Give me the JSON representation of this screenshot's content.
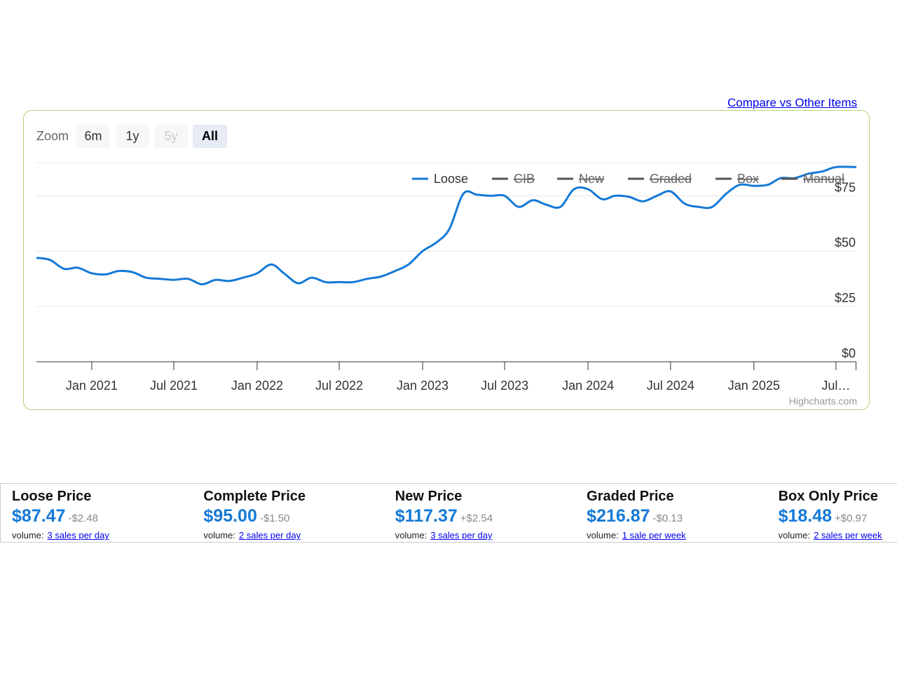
{
  "compare_link": "Compare vs Other Items",
  "chart": {
    "zoom_label": "Zoom",
    "zoom_buttons": [
      {
        "label": "6m",
        "state": "normal"
      },
      {
        "label": "1y",
        "state": "normal"
      },
      {
        "label": "5y",
        "state": "disabled"
      },
      {
        "label": "All",
        "state": "active"
      }
    ],
    "credits": "Highcharts.com"
  },
  "chart_data": {
    "type": "line",
    "title": "",
    "xlabel": "",
    "ylabel": "",
    "x_range": [
      "2020-09-01",
      "2025-08-15"
    ],
    "ylim": [
      0,
      90
    ],
    "y_ticks": [
      0,
      25,
      50,
      75
    ],
    "y_tick_labels": [
      "$0",
      "$25",
      "$50",
      "$75"
    ],
    "x_ticks": [
      "2021-01-01",
      "2021-07-01",
      "2022-01-01",
      "2022-07-01",
      "2023-01-01",
      "2023-07-01",
      "2024-01-01",
      "2024-07-01",
      "2025-01-01",
      "2025-07-01"
    ],
    "x_tick_labels": [
      "Jan 2021",
      "Jul 2021",
      "Jan 2022",
      "Jul 2022",
      "Jan 2023",
      "Jul 2023",
      "Jan 2024",
      "Jul 2024",
      "Jan 2025",
      "Jul…"
    ],
    "grid": true,
    "legend_position": "top-right",
    "series": [
      {
        "name": "Loose",
        "color": "#1479d6",
        "visible": true,
        "x": [
          "2020-09-01",
          "2020-10-01",
          "2020-11-01",
          "2020-12-01",
          "2021-01-01",
          "2021-02-01",
          "2021-03-01",
          "2021-04-01",
          "2021-05-01",
          "2021-06-01",
          "2021-07-01",
          "2021-08-01",
          "2021-09-01",
          "2021-10-01",
          "2021-11-01",
          "2021-12-01",
          "2022-01-01",
          "2022-02-01",
          "2022-03-01",
          "2022-04-01",
          "2022-05-01",
          "2022-06-01",
          "2022-07-01",
          "2022-08-01",
          "2022-09-01",
          "2022-10-01",
          "2022-11-01",
          "2022-12-01",
          "2023-01-01",
          "2023-02-01",
          "2023-03-01",
          "2023-04-01",
          "2023-05-01",
          "2023-06-01",
          "2023-07-01",
          "2023-08-01",
          "2023-09-01",
          "2023-10-01",
          "2023-11-01",
          "2023-12-01",
          "2024-01-01",
          "2024-02-01",
          "2024-03-01",
          "2024-04-01",
          "2024-05-01",
          "2024-06-01",
          "2024-07-01",
          "2024-08-01",
          "2024-09-01",
          "2024-10-01",
          "2024-11-01",
          "2024-12-01",
          "2025-01-01",
          "2025-02-01",
          "2025-03-01",
          "2025-04-01",
          "2025-05-01",
          "2025-06-01",
          "2025-07-01",
          "2025-08-15"
        ],
        "values": [
          47,
          46,
          42,
          42.5,
          40,
          39.5,
          41,
          40.5,
          38,
          37.5,
          37,
          37.5,
          35,
          37,
          36.5,
          38,
          40,
          44,
          40,
          35.5,
          38,
          36,
          36,
          36,
          37.5,
          38.5,
          41,
          44,
          50,
          54,
          60,
          76,
          75.5,
          75,
          75,
          70,
          73,
          71,
          70,
          78,
          78,
          73.5,
          75,
          74.5,
          72.5,
          75,
          77,
          71.5,
          70,
          70,
          76,
          80,
          79.5,
          80,
          83,
          83,
          85,
          86,
          88,
          88
        ]
      },
      {
        "name": "CIB",
        "color": "#555555",
        "visible": false
      },
      {
        "name": "New",
        "color": "#555555",
        "visible": false
      },
      {
        "name": "Graded",
        "color": "#555555",
        "visible": false
      },
      {
        "name": "Box",
        "color": "#555555",
        "visible": false
      },
      {
        "name": "Manual",
        "color": "#555555",
        "visible": false
      }
    ]
  },
  "stats": [
    {
      "title": "Loose Price",
      "price": "$87.47",
      "change": "-$2.48",
      "volume_label": "volume:",
      "volume_value": "3 sales per day"
    },
    {
      "title": "Complete Price",
      "price": "$95.00",
      "change": "-$1.50",
      "volume_label": "volume:",
      "volume_value": "2 sales per day"
    },
    {
      "title": "New Price",
      "price": "$117.37",
      "change": "+$2.54",
      "volume_label": "volume:",
      "volume_value": "3 sales per day"
    },
    {
      "title": "Graded Price",
      "price": "$216.87",
      "change": "-$0.13",
      "volume_label": "volume:",
      "volume_value": "1 sale per week"
    },
    {
      "title": "Box Only Price",
      "price": "$18.48",
      "change": "+$0.97",
      "volume_label": "volume:",
      "volume_value": "2 sales per week"
    }
  ]
}
